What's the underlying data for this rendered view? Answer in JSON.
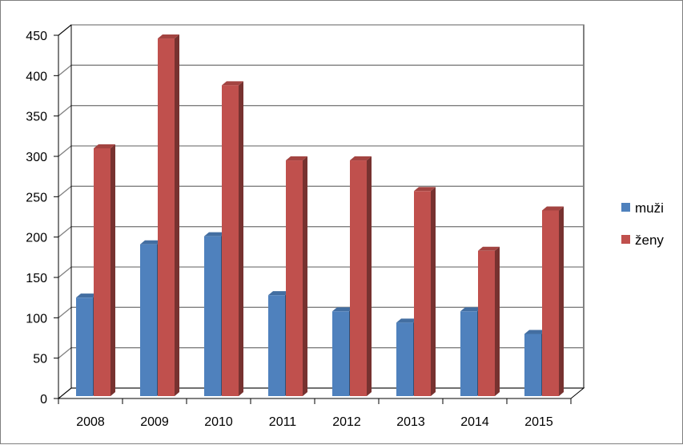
{
  "chart_data": {
    "type": "bar",
    "categories": [
      "2008",
      "2009",
      "2010",
      "2011",
      "2012",
      "2013",
      "2014",
      "2015"
    ],
    "series": [
      {
        "name": "muži",
        "color": "#4f81bd",
        "values": [
          122,
          188,
          198,
          125,
          105,
          91,
          105,
          77
        ]
      },
      {
        "name": "ženy",
        "color": "#c0504d",
        "values": [
          307,
          443,
          385,
          292,
          292,
          254,
          180,
          230
        ]
      }
    ],
    "title": "",
    "xlabel": "",
    "ylabel": "",
    "ylim": [
      0,
      450
    ],
    "yticks": [
      "0",
      "50",
      "100",
      "150",
      "200",
      "250",
      "300",
      "350",
      "400",
      "450"
    ],
    "grid": true,
    "legend_position": "right",
    "style": "3d-column"
  }
}
